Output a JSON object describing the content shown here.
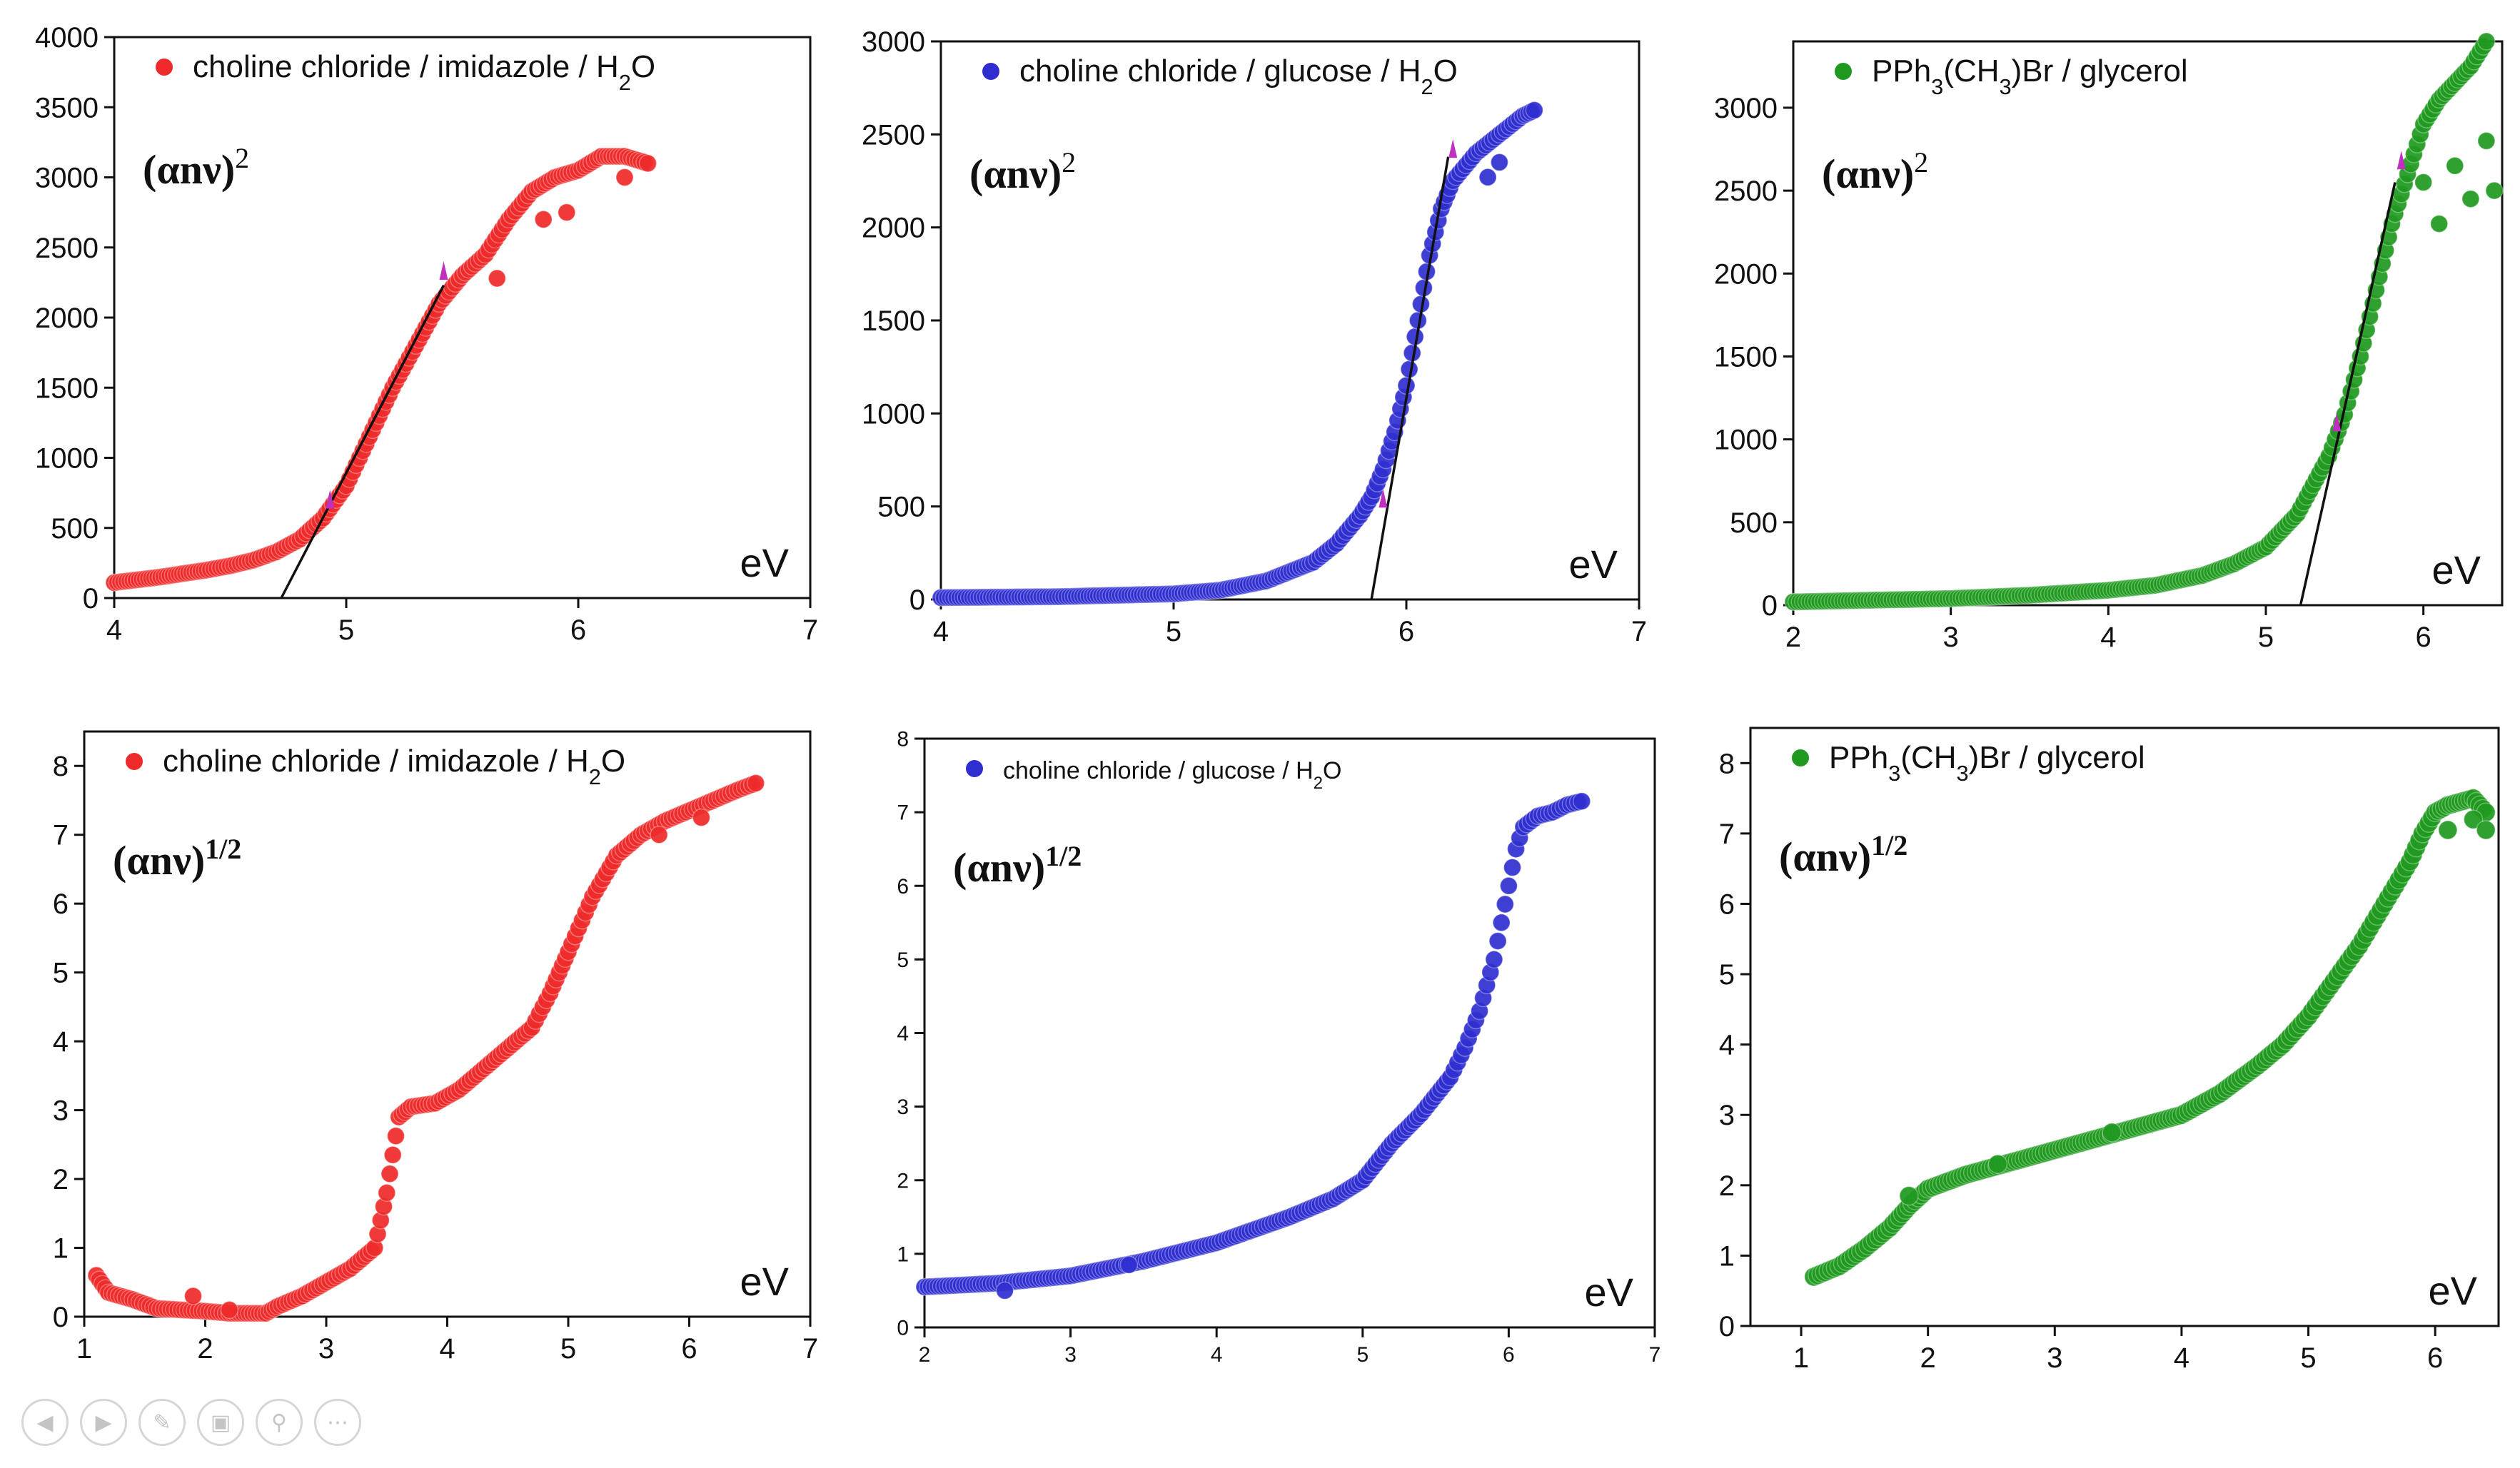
{
  "colors": {
    "red": "#ef2a2a",
    "blue": "#2f2fd1",
    "green": "#1f9a1f",
    "marker": "#c030c0"
  },
  "icons": [
    "previous-icon",
    "next-icon",
    "pen-icon",
    "slides-icon",
    "zoom-icon",
    "more-icon"
  ],
  "chart_data": [
    {
      "type": "scatter",
      "color": "#ef2a2a",
      "legend": "choline chloride / imidazole / H2O",
      "ylabel": "(αnν)",
      "ylabel_exp": "2",
      "xlabel": "eV",
      "xlim": [
        4,
        7
      ],
      "ylim": [
        0,
        4000
      ],
      "xticks": [
        4,
        5,
        6,
        7
      ],
      "yticks": [
        0,
        500,
        1000,
        1500,
        2000,
        2500,
        3000,
        3500,
        4000
      ],
      "points": [
        [
          4.0,
          110
        ],
        [
          4.2,
          150
        ],
        [
          4.4,
          200
        ],
        [
          4.5,
          230
        ],
        [
          4.6,
          270
        ],
        [
          4.7,
          330
        ],
        [
          4.8,
          420
        ],
        [
          4.9,
          570
        ],
        [
          5.0,
          800
        ],
        [
          5.1,
          1150
        ],
        [
          5.2,
          1500
        ],
        [
          5.3,
          1800
        ],
        [
          5.4,
          2100
        ],
        [
          5.5,
          2300
        ],
        [
          5.6,
          2450
        ],
        [
          5.7,
          2700
        ],
        [
          5.8,
          2900
        ],
        [
          5.9,
          3000
        ],
        [
          6.0,
          3050
        ],
        [
          6.1,
          3150
        ],
        [
          6.2,
          3150
        ],
        [
          6.3,
          3100
        ]
      ],
      "scatter_points": [
        [
          5.65,
          2280
        ],
        [
          5.85,
          2700
        ],
        [
          5.95,
          2750
        ],
        [
          6.2,
          3000
        ]
      ],
      "fit_line": [
        [
          4.72,
          0
        ],
        [
          5.42,
          2230
        ]
      ],
      "markers": [
        [
          4.93,
          700
        ],
        [
          5.42,
          2330
        ]
      ]
    },
    {
      "type": "scatter",
      "color": "#2f2fd1",
      "legend": "choline chloride / glucose / H2O",
      "ylabel": "(αnν)",
      "ylabel_exp": "2",
      "xlabel": "eV",
      "xlim": [
        4,
        7
      ],
      "ylim": [
        0,
        3000
      ],
      "xticks": [
        4,
        5,
        6,
        7
      ],
      "yticks": [
        0,
        500,
        1000,
        1500,
        2000,
        2500,
        3000
      ],
      "points": [
        [
          4.0,
          10
        ],
        [
          4.5,
          15
        ],
        [
          5.0,
          30
        ],
        [
          5.2,
          50
        ],
        [
          5.4,
          100
        ],
        [
          5.6,
          200
        ],
        [
          5.7,
          300
        ],
        [
          5.8,
          450
        ],
        [
          5.85,
          550
        ],
        [
          5.9,
          700
        ],
        [
          5.95,
          900
        ],
        [
          6.0,
          1150
        ],
        [
          6.05,
          1500
        ],
        [
          6.1,
          1850
        ],
        [
          6.15,
          2100
        ],
        [
          6.2,
          2250
        ],
        [
          6.3,
          2400
        ],
        [
          6.4,
          2500
        ],
        [
          6.5,
          2600
        ],
        [
          6.55,
          2630
        ]
      ],
      "scatter_points": [
        [
          6.35,
          2270
        ],
        [
          6.4,
          2350
        ]
      ],
      "fit_line": [
        [
          5.85,
          0
        ],
        [
          6.18,
          2380
        ]
      ],
      "markers": [
        [
          5.9,
          540
        ],
        [
          6.2,
          2420
        ]
      ]
    },
    {
      "type": "scatter",
      "color": "#1f9a1f",
      "legend": "PPh3(CH3)Br / glycerol",
      "ylabel": "(αnν)",
      "ylabel_exp": "2",
      "xlabel": "eV",
      "xlim": [
        2,
        6.5
      ],
      "ylim": [
        0,
        3400
      ],
      "xticks": [
        2,
        3,
        4,
        5,
        6
      ],
      "yticks": [
        0,
        500,
        1000,
        1500,
        2000,
        2500,
        3000
      ],
      "points": [
        [
          2.0,
          20
        ],
        [
          2.5,
          30
        ],
        [
          3.0,
          40
        ],
        [
          3.5,
          60
        ],
        [
          4.0,
          90
        ],
        [
          4.3,
          120
        ],
        [
          4.6,
          180
        ],
        [
          4.8,
          250
        ],
        [
          5.0,
          350
        ],
        [
          5.2,
          550
        ],
        [
          5.4,
          900
        ],
        [
          5.5,
          1150
        ],
        [
          5.6,
          1500
        ],
        [
          5.7,
          1900
        ],
        [
          5.8,
          2300
        ],
        [
          5.9,
          2600
        ],
        [
          6.0,
          2900
        ],
        [
          6.1,
          3050
        ],
        [
          6.2,
          3150
        ],
        [
          6.3,
          3250
        ],
        [
          6.4,
          3400
        ]
      ],
      "scatter_points": [
        [
          6.0,
          2550
        ],
        [
          6.1,
          2300
        ],
        [
          6.2,
          2650
        ],
        [
          6.3,
          2450
        ],
        [
          6.4,
          2800
        ],
        [
          6.45,
          2500
        ]
      ],
      "fit_line": [
        [
          5.22,
          0
        ],
        [
          5.82,
          2550
        ]
      ],
      "markers": [
        [
          5.45,
          1100
        ],
        [
          5.86,
          2680
        ]
      ]
    },
    {
      "type": "scatter",
      "color": "#ef2a2a",
      "legend": "choline chloride / imidazole / H2O",
      "ylabel": "(αnν)",
      "ylabel_exp": "1/2",
      "xlabel": "eV",
      "xlim": [
        1,
        7
      ],
      "ylim": [
        0,
        8.5
      ],
      "xticks": [
        1,
        2,
        3,
        4,
        5,
        6,
        7
      ],
      "yticks": [
        0,
        1,
        2,
        3,
        4,
        5,
        6,
        7,
        8
      ],
      "points": [
        [
          1.1,
          0.6
        ],
        [
          1.2,
          0.35
        ],
        [
          1.4,
          0.25
        ],
        [
          1.6,
          0.12
        ],
        [
          1.8,
          0.1
        ],
        [
          2.0,
          0.08
        ],
        [
          2.2,
          0.05
        ],
        [
          2.5,
          0.05
        ],
        [
          2.6,
          0.15
        ],
        [
          2.8,
          0.3
        ],
        [
          3.0,
          0.5
        ],
        [
          3.2,
          0.7
        ],
        [
          3.4,
          1.0
        ],
        [
          3.5,
          1.8
        ],
        [
          3.6,
          2.9
        ],
        [
          3.7,
          3.05
        ],
        [
          3.9,
          3.1
        ],
        [
          4.1,
          3.3
        ],
        [
          4.3,
          3.6
        ],
        [
          4.5,
          3.9
        ],
        [
          4.7,
          4.2
        ],
        [
          4.85,
          4.7
        ],
        [
          5.0,
          5.3
        ],
        [
          5.2,
          6.1
        ],
        [
          5.4,
          6.7
        ],
        [
          5.6,
          7.0
        ],
        [
          5.8,
          7.2
        ],
        [
          6.0,
          7.35
        ],
        [
          6.2,
          7.5
        ],
        [
          6.4,
          7.65
        ],
        [
          6.55,
          7.75
        ]
      ],
      "scatter_points": [
        [
          1.9,
          0.3
        ],
        [
          2.2,
          0.1
        ],
        [
          5.75,
          7.0
        ],
        [
          6.1,
          7.25
        ]
      ]
    },
    {
      "type": "scatter",
      "color": "#2f2fd1",
      "legend": "choline chloride / glucose / H2O",
      "ylabel": "(αnν)",
      "ylabel_exp": "1/2",
      "xlabel": "eV",
      "xlim": [
        2,
        7
      ],
      "ylim": [
        0,
        8
      ],
      "xticks": [
        2,
        3,
        4,
        5,
        6,
        7
      ],
      "yticks": [
        0,
        1,
        2,
        3,
        4,
        5,
        6,
        7,
        8
      ],
      "points": [
        [
          2.0,
          0.55
        ],
        [
          2.5,
          0.6
        ],
        [
          3.0,
          0.7
        ],
        [
          3.5,
          0.9
        ],
        [
          4.0,
          1.15
        ],
        [
          4.5,
          1.5
        ],
        [
          4.8,
          1.75
        ],
        [
          5.0,
          2.0
        ],
        [
          5.2,
          2.5
        ],
        [
          5.4,
          2.9
        ],
        [
          5.6,
          3.4
        ],
        [
          5.7,
          3.8
        ],
        [
          5.8,
          4.3
        ],
        [
          5.9,
          5.0
        ],
        [
          6.0,
          6.0
        ],
        [
          6.05,
          6.5
        ],
        [
          6.1,
          6.8
        ],
        [
          6.2,
          6.95
        ],
        [
          6.3,
          7.0
        ],
        [
          6.4,
          7.1
        ],
        [
          6.5,
          7.15
        ]
      ],
      "scatter_points": [
        [
          2.55,
          0.5
        ],
        [
          3.4,
          0.85
        ]
      ]
    },
    {
      "type": "scatter",
      "color": "#1f9a1f",
      "legend": "PPh3(CH3)Br / glycerol",
      "ylabel": "(αnν)",
      "ylabel_exp": "1/2",
      "xlabel": "eV",
      "xlim": [
        0.6,
        6.5
      ],
      "ylim": [
        0,
        8.5
      ],
      "xticks": [
        1,
        2,
        3,
        4,
        5,
        6
      ],
      "yticks": [
        0,
        1,
        2,
        3,
        4,
        5,
        6,
        7,
        8
      ],
      "points": [
        [
          1.1,
          0.7
        ],
        [
          1.3,
          0.85
        ],
        [
          1.5,
          1.1
        ],
        [
          1.7,
          1.4
        ],
        [
          1.85,
          1.7
        ],
        [
          2.0,
          1.95
        ],
        [
          2.3,
          2.15
        ],
        [
          2.6,
          2.3
        ],
        [
          3.0,
          2.5
        ],
        [
          3.5,
          2.75
        ],
        [
          4.0,
          3.0
        ],
        [
          4.3,
          3.3
        ],
        [
          4.6,
          3.7
        ],
        [
          4.8,
          4.0
        ],
        [
          5.0,
          4.4
        ],
        [
          5.2,
          4.9
        ],
        [
          5.4,
          5.4
        ],
        [
          5.6,
          6.0
        ],
        [
          5.8,
          6.6
        ],
        [
          5.9,
          7.0
        ],
        [
          6.0,
          7.3
        ],
        [
          6.1,
          7.4
        ],
        [
          6.2,
          7.45
        ],
        [
          6.3,
          7.5
        ],
        [
          6.4,
          7.3
        ]
      ],
      "scatter_points": [
        [
          1.85,
          1.85
        ],
        [
          2.55,
          2.3
        ],
        [
          3.45,
          2.75
        ],
        [
          6.1,
          7.05
        ],
        [
          6.3,
          7.2
        ],
        [
          6.4,
          7.05
        ]
      ]
    }
  ]
}
